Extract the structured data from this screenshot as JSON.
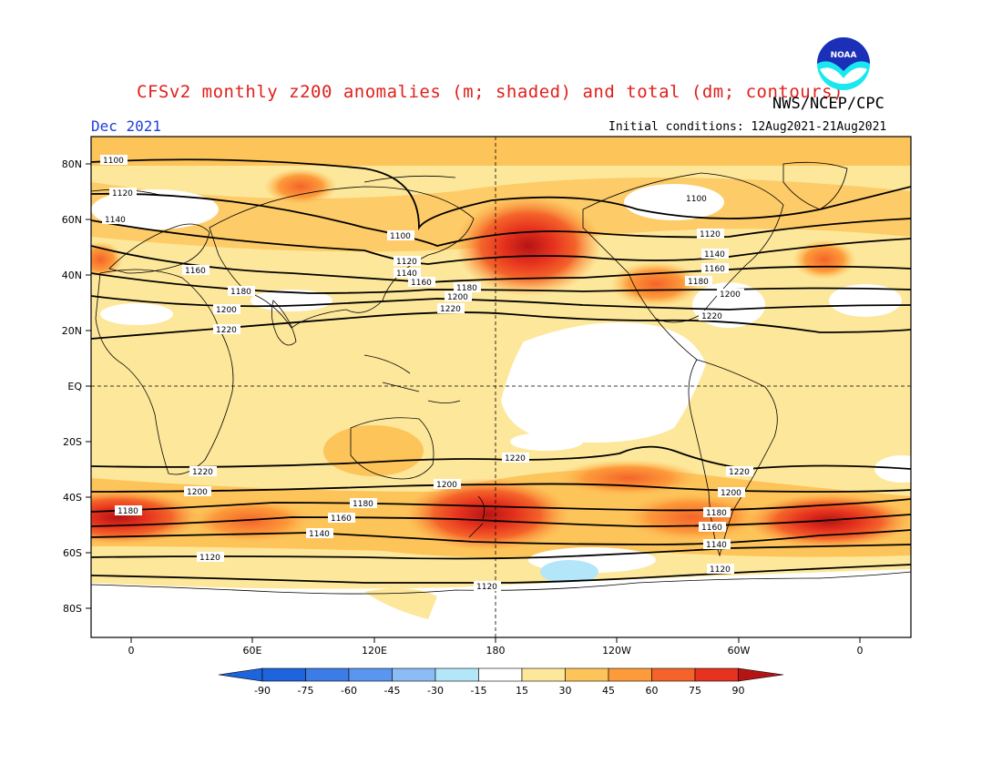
{
  "header": {
    "title": "CFSv2 monthly z200 anomalies (m; shaded) and total (dm; contours)",
    "agency": "NWS/NCEP/CPC",
    "month": "Dec 2021",
    "initial_conditions": "Initial conditions: 12Aug2021-21Aug2021",
    "logo_text": "NOAA"
  },
  "axes": {
    "lat_labels": [
      "80N",
      "60N",
      "40N",
      "20N",
      "EQ",
      "20S",
      "40S",
      "60S",
      "80S"
    ],
    "lon_labels": [
      "0",
      "60E",
      "120E",
      "180",
      "120W",
      "60W",
      "0"
    ]
  },
  "colorbar": {
    "labels": [
      "-90",
      "-75",
      "-60",
      "-45",
      "-30",
      "-15",
      "15",
      "30",
      "45",
      "60",
      "75",
      "90"
    ],
    "colors": [
      "#1e64dc",
      "#3c7ce6",
      "#5a96f0",
      "#8cbcf5",
      "#b4e6fa",
      "#ffffff",
      "#fde79a",
      "#fdc45a",
      "#fd9a3a",
      "#f4642a",
      "#e6321e",
      "#b41414"
    ]
  },
  "contour_labels": {
    "c1100": "1100",
    "c1120": "1120",
    "c1140": "1140",
    "c1160": "1160",
    "c1180": "1180",
    "c1200": "1200",
    "c1220": "1220"
  },
  "colors": {
    "title": "#e0201c",
    "month": "#1f3fd8",
    "base_anomaly": "#fde79a"
  }
}
